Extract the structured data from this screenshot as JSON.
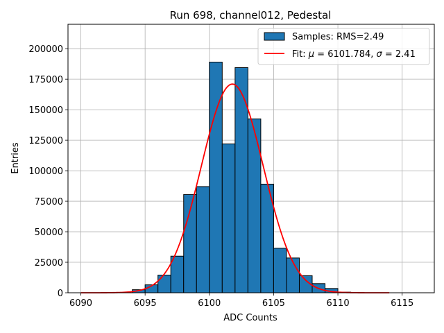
{
  "chart_data": {
    "type": "bar",
    "title": "Run 698, channel012, Pedestal",
    "xlabel": "ADC Counts",
    "ylabel": "Entries",
    "xlim": [
      6089,
      6117.5
    ],
    "ylim": [
      0,
      220000
    ],
    "xticks": [
      6090,
      6095,
      6100,
      6105,
      6110,
      6115
    ],
    "xtick_labels": [
      "6090",
      "6095",
      "6100",
      "6105",
      "6110",
      "6115"
    ],
    "yticks": [
      0,
      25000,
      50000,
      75000,
      100000,
      125000,
      150000,
      175000,
      200000
    ],
    "ytick_labels": [
      "0",
      "25000",
      "50000",
      "75000",
      "100000",
      "125000",
      "150000",
      "175000",
      "200000"
    ],
    "grid": true,
    "legend_position": "top-right",
    "histogram": {
      "name": "Samples: RMS=2.49",
      "color": "#1f77b4",
      "edge_color": "#000000",
      "bin_width": 1,
      "bin_left_edges": [
        6094,
        6095,
        6096,
        6097,
        6098,
        6099,
        6100,
        6101,
        6102,
        6103,
        6104,
        6105,
        6106,
        6107,
        6108,
        6109,
        6110
      ],
      "values": [
        2500,
        6500,
        14500,
        30000,
        80500,
        87000,
        189000,
        122000,
        184500,
        142500,
        89000,
        36500,
        28500,
        14000,
        7500,
        3500,
        500
      ]
    },
    "fit": {
      "name_prefix": "Fit: ",
      "mu_symbol": "μ",
      "mu_text": " = 6101.784, ",
      "sigma_symbol": "σ",
      "sigma_text": " = 2.41",
      "color": "#ff0000",
      "mu": 6101.784,
      "sigma": 2.41,
      "peak": 171000,
      "x_range": [
        6090,
        6114
      ]
    }
  }
}
